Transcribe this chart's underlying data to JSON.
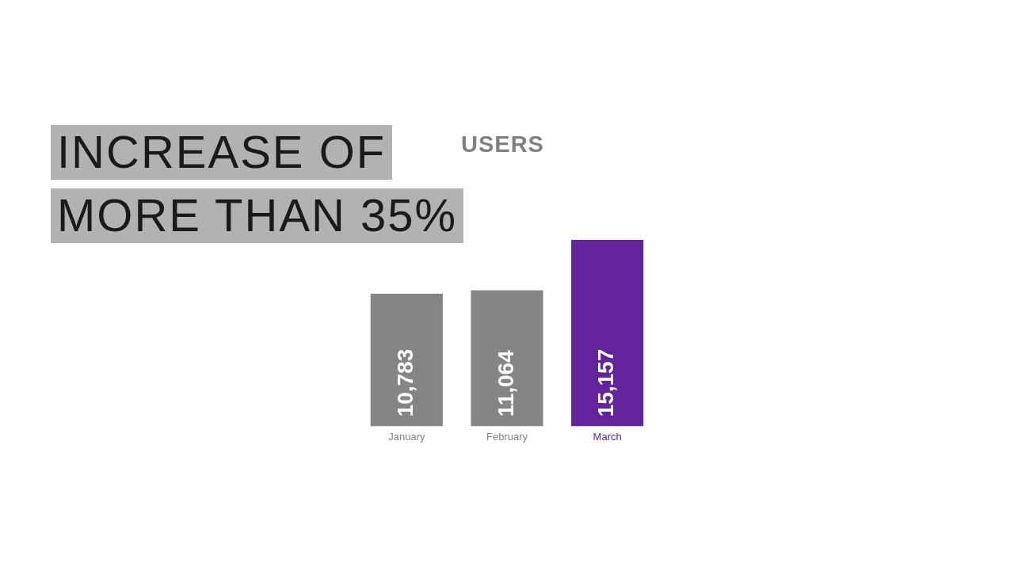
{
  "chart_data": {
    "type": "bar",
    "title": "INCREASE OF MORE THAN 35%",
    "subtitle": "USERS",
    "categories": [
      "January",
      "February",
      "March"
    ],
    "values": [
      10783,
      11064,
      15157
    ],
    "value_labels": [
      "10,783",
      "11,064",
      "15,157"
    ],
    "colors": [
      "#838587",
      "#838587",
      "#62239b"
    ],
    "grid": false,
    "legend": false
  }
}
